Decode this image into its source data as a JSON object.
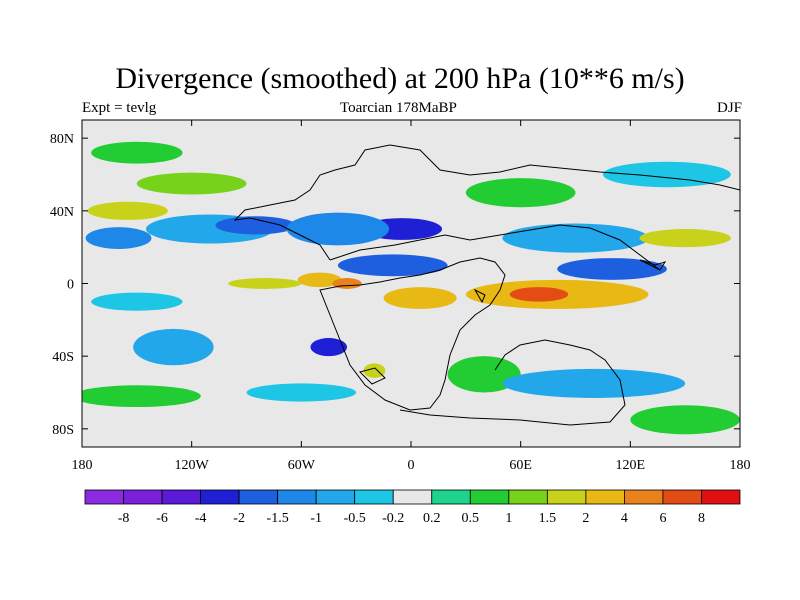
{
  "title": "Divergence (smoothed) at 200 hPa (10**6 m/s)",
  "left_label": "Expt = tevlg",
  "center_label": "Toarcian 178MaBP",
  "right_label": "DJF",
  "chart_data": {
    "type": "heatmap",
    "title": "Divergence (smoothed) at 200 hPa (10**6 m/s)",
    "xlabel": "",
    "ylabel": "",
    "xlim": [
      -180,
      180
    ],
    "ylim": [
      -90,
      90
    ],
    "x_ticks": [
      {
        "value": -180,
        "label": "180"
      },
      {
        "value": -120,
        "label": "120W"
      },
      {
        "value": -60,
        "label": "60W"
      },
      {
        "value": 0,
        "label": "0"
      },
      {
        "value": 60,
        "label": "60E"
      },
      {
        "value": 120,
        "label": "120E"
      },
      {
        "value": 180,
        "label": "180"
      }
    ],
    "y_ticks": [
      {
        "value": 80,
        "label": "80N"
      },
      {
        "value": 40,
        "label": "40N"
      },
      {
        "value": 0,
        "label": "0"
      },
      {
        "value": -40,
        "label": "40S"
      },
      {
        "value": -80,
        "label": "80S"
      }
    ],
    "colorbar": {
      "levels": [
        "-8",
        "-6",
        "-4",
        "-2",
        "-1.5",
        "-1",
        "-0.5",
        "-0.2",
        "0.2",
        "0.5",
        "1",
        "1.5",
        "2",
        "4",
        "6",
        "8"
      ],
      "colors": [
        "#8a2be2",
        "#7a20dd",
        "#5a1ad8",
        "#1f1fd6",
        "#1e5fe0",
        "#1e88e8",
        "#22a8ea",
        "#1cc6e4",
        "#e8e8e8",
        "#1ed48c",
        "#22cc33",
        "#77d21a",
        "#c8d21a",
        "#e8b814",
        "#e8821a",
        "#e44c16",
        "#e01010"
      ]
    },
    "regions": [
      {
        "lon": -150,
        "lat": 72,
        "rlon": 25,
        "rlat": 6,
        "value": 0.5
      },
      {
        "lon": -120,
        "lat": 55,
        "rlon": 30,
        "rlat": 6,
        "value": 1
      },
      {
        "lon": -155,
        "lat": 40,
        "rlon": 22,
        "rlat": 5,
        "value": 1.5
      },
      {
        "lon": -160,
        "lat": 25,
        "rlon": 18,
        "rlat": 6,
        "value": -1.5
      },
      {
        "lon": -110,
        "lat": 30,
        "rlon": 35,
        "rlat": 8,
        "value": -1
      },
      {
        "lon": -85,
        "lat": 32,
        "rlon": 22,
        "rlat": 5,
        "value": -2
      },
      {
        "lon": -5,
        "lat": 30,
        "rlon": 22,
        "rlat": 6,
        "value": -4
      },
      {
        "lon": -40,
        "lat": 30,
        "rlon": 28,
        "rlat": 9,
        "value": -1.5
      },
      {
        "lon": -10,
        "lat": 10,
        "rlon": 30,
        "rlat": 6,
        "value": -2
      },
      {
        "lon": -50,
        "lat": 2,
        "rlon": 12,
        "rlat": 4,
        "value": 2
      },
      {
        "lon": -35,
        "lat": 0,
        "rlon": 8,
        "rlat": 3,
        "value": 4
      },
      {
        "lon": -80,
        "lat": 0,
        "rlon": 20,
        "rlat": 3,
        "value": 1.5
      },
      {
        "lon": 5,
        "lat": -8,
        "rlon": 20,
        "rlat": 6,
        "value": 2
      },
      {
        "lon": 80,
        "lat": -6,
        "rlon": 50,
        "rlat": 8,
        "value": 2
      },
      {
        "lon": 70,
        "lat": -6,
        "rlon": 16,
        "rlat": 4,
        "value": 6
      },
      {
        "lon": 110,
        "lat": 8,
        "rlon": 30,
        "rlat": 6,
        "value": -2
      },
      {
        "lon": 90,
        "lat": 25,
        "rlon": 40,
        "rlat": 8,
        "value": -1
      },
      {
        "lon": 150,
        "lat": 25,
        "rlon": 25,
        "rlat": 5,
        "value": 1.5
      },
      {
        "lon": 140,
        "lat": 60,
        "rlon": 35,
        "rlat": 7,
        "value": -0.5
      },
      {
        "lon": 60,
        "lat": 50,
        "rlon": 30,
        "rlat": 8,
        "value": 0.5
      },
      {
        "lon": -150,
        "lat": -10,
        "rlon": 25,
        "rlat": 5,
        "value": -0.5
      },
      {
        "lon": -130,
        "lat": -35,
        "rlon": 22,
        "rlat": 10,
        "value": -1
      },
      {
        "lon": -45,
        "lat": -35,
        "rlon": 10,
        "rlat": 5,
        "value": -4
      },
      {
        "lon": -20,
        "lat": -48,
        "rlon": 6,
        "rlat": 4,
        "value": 1.5
      },
      {
        "lon": 40,
        "lat": -50,
        "rlon": 20,
        "rlat": 10,
        "value": 0.5
      },
      {
        "lon": 100,
        "lat": -55,
        "rlon": 50,
        "rlat": 8,
        "value": -1
      },
      {
        "lon": -150,
        "lat": -62,
        "rlon": 35,
        "rlat": 6,
        "value": 0.5
      },
      {
        "lon": -60,
        "lat": -60,
        "rlon": 30,
        "rlat": 5,
        "value": -0.5
      },
      {
        "lon": 150,
        "lat": -75,
        "rlon": 30,
        "rlat": 8,
        "value": 0.5
      }
    ]
  }
}
